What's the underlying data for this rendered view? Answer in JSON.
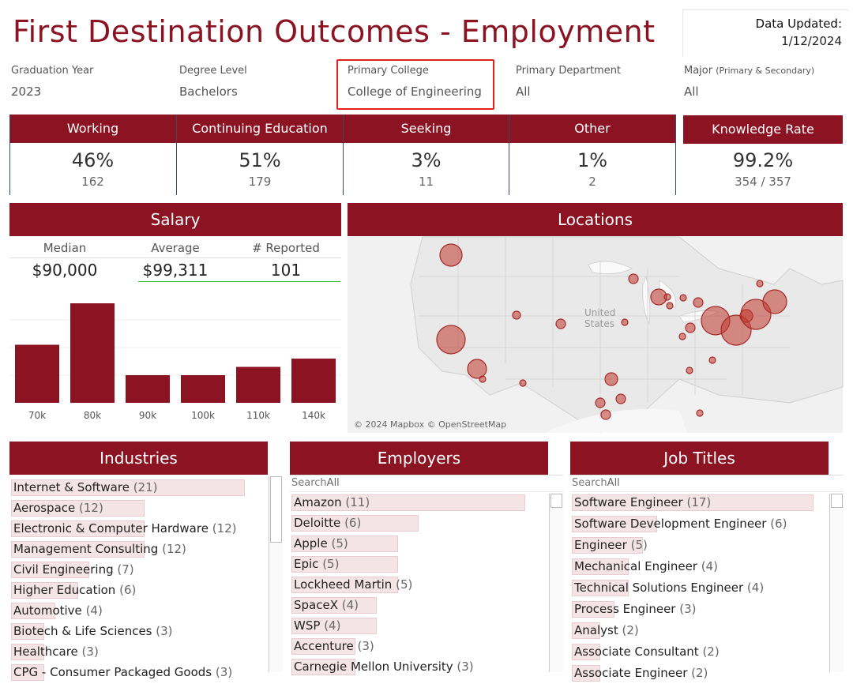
{
  "header": {
    "title": "First Destination Outcomes - Employment",
    "updated_label": "Data Updated:",
    "updated_value": "1/12/2024"
  },
  "filters": [
    {
      "label": "Graduation Year",
      "value": "2023"
    },
    {
      "label": "Degree Level",
      "value": "Bachelors"
    },
    {
      "label": "Primary College",
      "value": "College of Engineering"
    },
    {
      "label": "Primary Department",
      "value": "All"
    },
    {
      "label": "Major",
      "label_note": "(Primary & Secondary)",
      "value": "All"
    }
  ],
  "kpis": [
    {
      "label": "Working",
      "pct": "46%",
      "count": "162"
    },
    {
      "label": "Continuing Education",
      "pct": "51%",
      "count": "179"
    },
    {
      "label": "Seeking",
      "pct": "3%",
      "count": "11"
    },
    {
      "label": "Other",
      "pct": "1%",
      "count": "2"
    },
    {
      "label": "Knowledge Rate",
      "pct": "99.2%",
      "count": "354 / 357"
    }
  ],
  "salary": {
    "title": "Salary",
    "median_label": "Median",
    "median": "$90,000",
    "average_label": "Average",
    "average": "$99,311",
    "reported_label": "# Reported",
    "reported": "101"
  },
  "chart_data": {
    "type": "bar",
    "title": "Salary",
    "categories": [
      "70k",
      "80k",
      "90k",
      "100k",
      "110k",
      "140k"
    ],
    "values": [
      21,
      36,
      10,
      10,
      13,
      16
    ],
    "ylim": [
      0,
      40
    ],
    "color": "#8c1322"
  },
  "locations": {
    "title": "Locations",
    "country_label_1": "United",
    "country_label_2": "States",
    "attribution": "© 2024 Mapbox © OpenStreetMap",
    "marker_color": "#c0392b"
  },
  "industries": {
    "title": "Industries",
    "items": [
      {
        "name": "Internet & Software",
        "count": "(21)",
        "n": 21
      },
      {
        "name": "Aerospace",
        "count": "(12)",
        "n": 12
      },
      {
        "name": "Electronic & Computer Hardware",
        "count": "(12)",
        "n": 12
      },
      {
        "name": "Management Consulting",
        "count": "(12)",
        "n": 12
      },
      {
        "name": "Civil Engineering",
        "count": "(7)",
        "n": 7
      },
      {
        "name": "Higher Education",
        "count": "(6)",
        "n": 6
      },
      {
        "name": "Automotive",
        "count": "(4)",
        "n": 4
      },
      {
        "name": "Biotech & Life Sciences",
        "count": "(3)",
        "n": 3
      },
      {
        "name": "Healthcare",
        "count": "(3)",
        "n": 3
      },
      {
        "name": "CPG - Consumer Packaged Goods",
        "count": "(3)",
        "n": 3
      }
    ]
  },
  "employers": {
    "title": "Employers",
    "search_placeholder": "Search",
    "search_value": "All",
    "items": [
      {
        "name": "Amazon",
        "count": "(11)",
        "n": 11
      },
      {
        "name": "Deloitte",
        "count": "(6)",
        "n": 6
      },
      {
        "name": "Apple",
        "count": "(5)",
        "n": 5
      },
      {
        "name": "Epic",
        "count": "(5)",
        "n": 5
      },
      {
        "name": "Lockheed Martin",
        "count": "(5)",
        "n": 5
      },
      {
        "name": "SpaceX",
        "count": "(4)",
        "n": 4
      },
      {
        "name": "WSP",
        "count": "(4)",
        "n": 4
      },
      {
        "name": "Accenture",
        "count": "(3)",
        "n": 3
      },
      {
        "name": "Carnegie Mellon University",
        "count": "(3)",
        "n": 3
      }
    ]
  },
  "job_titles": {
    "title": "Job Titles",
    "search_placeholder": "Search",
    "search_value": "All",
    "items": [
      {
        "name": "Software Engineer",
        "count": "(17)",
        "n": 17
      },
      {
        "name": "Software Development Engineer",
        "count": "(6)",
        "n": 6
      },
      {
        "name": "Engineer",
        "count": "(5)",
        "n": 5
      },
      {
        "name": "Mechanical Engineer",
        "count": "(4)",
        "n": 4
      },
      {
        "name": "Technical Solutions Engineer",
        "count": "(4)",
        "n": 4
      },
      {
        "name": "Process Engineer",
        "count": "(3)",
        "n": 3
      },
      {
        "name": "Analyst",
        "count": "(2)",
        "n": 2
      },
      {
        "name": "Associate Consultant",
        "count": "(2)",
        "n": 2
      },
      {
        "name": "Associate Engineer",
        "count": "(2)",
        "n": 2
      }
    ]
  }
}
